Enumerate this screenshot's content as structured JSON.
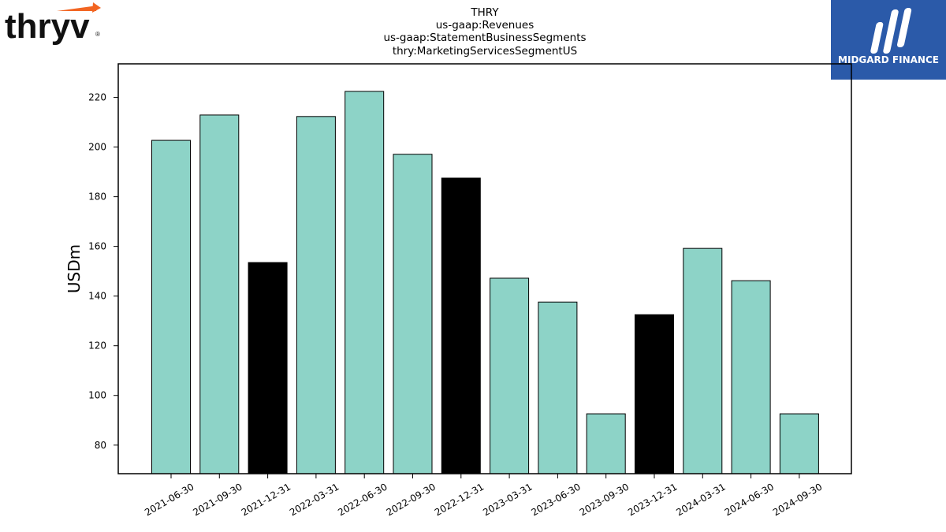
{
  "chart_data": {
    "type": "bar",
    "title_lines": [
      "THRY",
      "us-gaap:Revenues",
      "us-gaap:StatementBusinessSegments",
      "thry:MarketingServicesSegmentUS"
    ],
    "xlabel": "",
    "ylabel": "USDm",
    "categories": [
      "2021-06-30",
      "2021-09-30",
      "2021-12-31",
      "2022-03-31",
      "2022-06-30",
      "2022-09-30",
      "2022-12-31",
      "2023-03-31",
      "2023-06-30",
      "2023-09-30",
      "2023-12-31",
      "2024-03-31",
      "2024-06-30",
      "2024-09-30"
    ],
    "values": [
      202.7,
      212.9,
      153.5,
      212.3,
      222.4,
      197.1,
      187.5,
      147.2,
      137.6,
      92.6,
      132.5,
      159.2,
      146.2,
      92.6
    ],
    "bar_kinds": [
      "q",
      "q",
      "fy",
      "q",
      "q",
      "q",
      "fy",
      "q",
      "q",
      "q",
      "fy",
      "q",
      "q",
      "q"
    ],
    "yticks": [
      80,
      100,
      120,
      140,
      160,
      180,
      200,
      220
    ],
    "ylim": [
      68.5,
      233.5
    ],
    "grid": false,
    "colors": {
      "quarter": "#8dd3c7",
      "annual": "#000000",
      "edge": "#000000"
    }
  },
  "logos": {
    "left": {
      "text": "thryv",
      "mark": "®",
      "accent": "#f26522"
    },
    "right": {
      "text": "MIDGARD FINANCE",
      "bg": "#2b5aa9"
    }
  }
}
